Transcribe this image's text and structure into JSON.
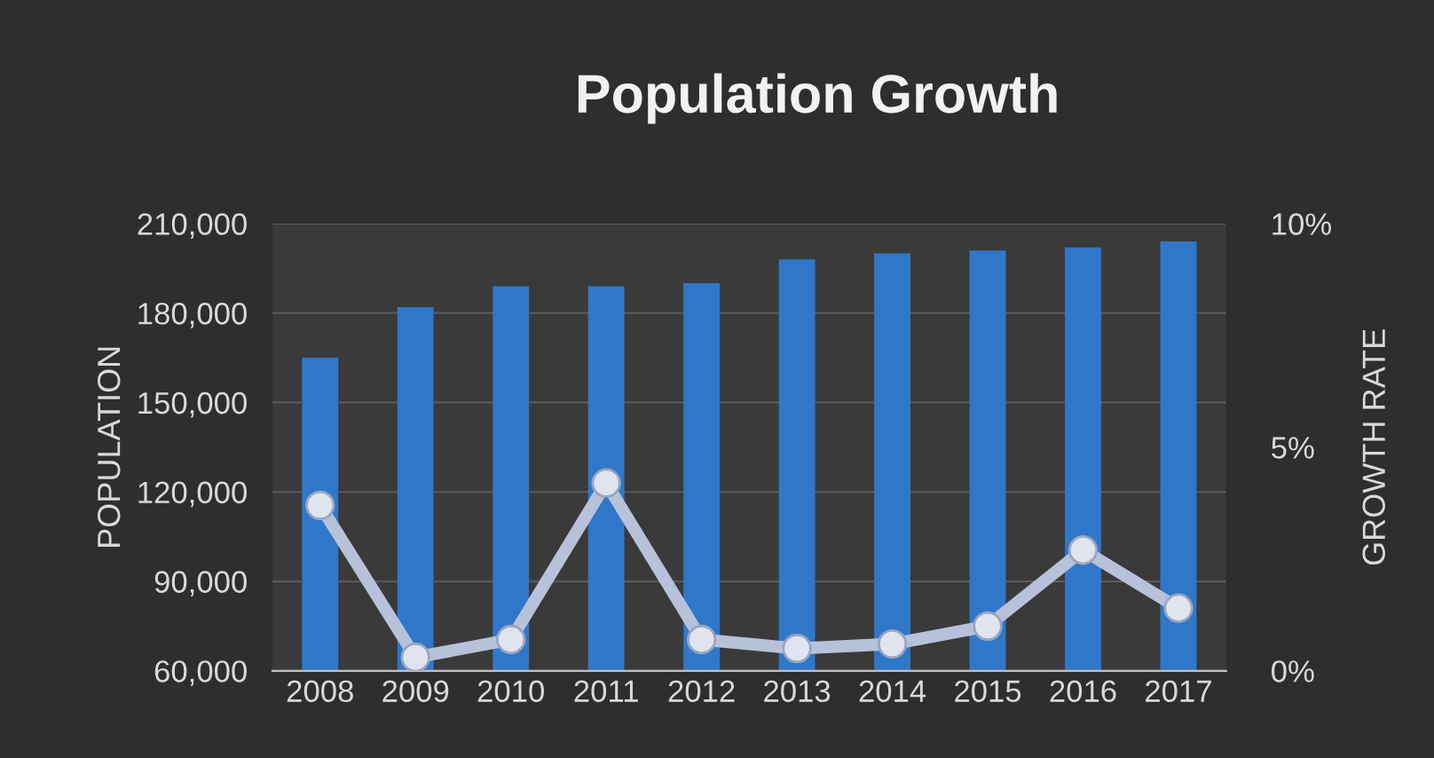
{
  "chart_data": {
    "type": "bar",
    "title": "Population Growth",
    "ylabel": "POPULATION",
    "y2label": "GROWTH RATE",
    "categories": [
      "2008",
      "2009",
      "2010",
      "2011",
      "2012",
      "2013",
      "2014",
      "2015",
      "2016",
      "2017"
    ],
    "series": [
      {
        "color": "#2f78c9",
        "values": [
          165000,
          182000,
          189000,
          189000,
          190000,
          198000,
          200000,
          201000,
          202000,
          204000
        ]
      },
      {
        "type": "line",
        "axis": "y2",
        "color": "#b7c1da",
        "marker": "circle",
        "values": [
          3.7,
          0.3,
          0.7,
          4.2,
          0.7,
          0.5,
          0.6,
          1.0,
          2.7,
          1.4
        ]
      }
    ],
    "ylim": [
      60000,
      210000
    ],
    "yticks": [
      {
        "value": 60000,
        "label": "60,000"
      },
      {
        "value": 90000,
        "label": "90,000"
      },
      {
        "value": 120000,
        "label": "120,000"
      },
      {
        "value": 150000,
        "label": "150,000"
      },
      {
        "value": 180000,
        "label": "180,000"
      },
      {
        "value": 210000,
        "label": "210,000"
      }
    ],
    "y2lim": [
      0,
      10
    ],
    "y2ticks": [
      {
        "value": 0,
        "label": "0%"
      },
      {
        "value": 5,
        "label": "5%"
      },
      {
        "value": 10,
        "label": "10%"
      }
    ],
    "grid": "y",
    "legend": false
  }
}
